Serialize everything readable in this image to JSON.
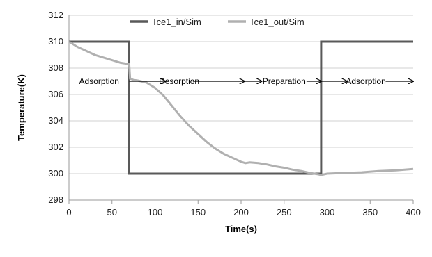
{
  "chart_data": {
    "type": "line",
    "title": "",
    "xlabel": "Time(s)",
    "ylabel": "Temperature(K)",
    "xlim": [
      0,
      400
    ],
    "ylim": [
      298,
      312
    ],
    "x_ticks": [
      0,
      50,
      100,
      150,
      200,
      250,
      300,
      350,
      400
    ],
    "y_ticks": [
      298,
      300,
      302,
      304,
      306,
      308,
      310,
      312
    ],
    "grid": "horizontal",
    "legend": "top",
    "series": [
      {
        "name": "Tce1_in/Sim",
        "color": "#595959",
        "points": [
          [
            0,
            310
          ],
          [
            70,
            310
          ],
          [
            70,
            300
          ],
          [
            293,
            300
          ],
          [
            293,
            310
          ],
          [
            400,
            310
          ]
        ]
      },
      {
        "name": "Tce1_out/Sim",
        "color": "#b0b0b0",
        "points": [
          [
            0,
            310
          ],
          [
            10,
            309.6
          ],
          [
            20,
            309.3
          ],
          [
            30,
            309
          ],
          [
            40,
            308.8
          ],
          [
            50,
            308.6
          ],
          [
            60,
            308.4
          ],
          [
            70,
            308.3
          ],
          [
            71,
            307.2
          ],
          [
            75,
            307.1
          ],
          [
            80,
            307.05
          ],
          [
            90,
            306.9
          ],
          [
            100,
            306.5
          ],
          [
            110,
            305.9
          ],
          [
            120,
            305.1
          ],
          [
            130,
            304.3
          ],
          [
            140,
            303.6
          ],
          [
            150,
            303
          ],
          [
            160,
            302.4
          ],
          [
            170,
            301.9
          ],
          [
            180,
            301.5
          ],
          [
            190,
            301.2
          ],
          [
            200,
            300.9
          ],
          [
            205,
            300.8
          ],
          [
            210,
            300.85
          ],
          [
            220,
            300.8
          ],
          [
            230,
            300.7
          ],
          [
            240,
            300.55
          ],
          [
            250,
            300.45
          ],
          [
            260,
            300.3
          ],
          [
            270,
            300.2
          ],
          [
            280,
            300.05
          ],
          [
            290,
            299.95
          ],
          [
            293,
            299.9
          ],
          [
            300,
            300
          ],
          [
            320,
            300.05
          ],
          [
            340,
            300.1
          ],
          [
            360,
            300.2
          ],
          [
            380,
            300.25
          ],
          [
            400,
            300.35
          ]
        ]
      }
    ],
    "annotations": [
      {
        "label": "Adsorption",
        "x": 35,
        "y": 307
      },
      {
        "label": "Desorption",
        "x": 128,
        "y": 307
      },
      {
        "label": "Preparation",
        "x": 250,
        "y": 307
      },
      {
        "label": "Adsorption",
        "x": 345,
        "y": 307
      }
    ],
    "arrows": [
      {
        "from": 70,
        "to": 112,
        "y": 307
      },
      {
        "from": 144,
        "to": 204,
        "y": 307
      },
      {
        "from": 204,
        "to": 224,
        "y": 307
      },
      {
        "from": 276,
        "to": 293,
        "y": 307
      },
      {
        "from": 293,
        "to": 323,
        "y": 307
      },
      {
        "from": 368,
        "to": 400,
        "y": 307
      }
    ]
  }
}
